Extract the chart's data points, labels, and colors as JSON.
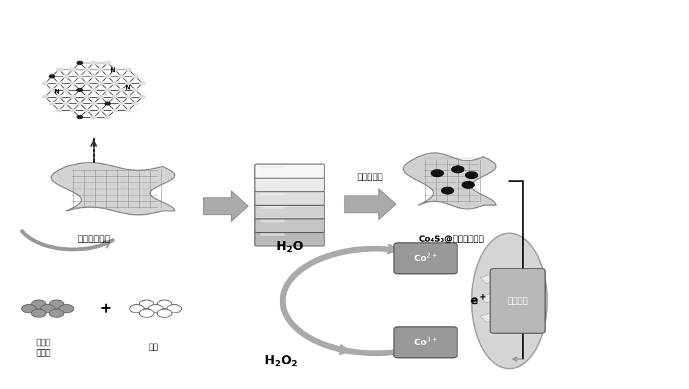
{
  "bg_color": "#ffffff",
  "fig_width": 10.0,
  "fig_height": 5.65,
  "graphene_label": "氮掺杂石墨烯",
  "cobalt_acetate_label": "四水合\n醋酸钔",
  "thiourea_label": "硫脲",
  "reaction_label": "溶剂热反应",
  "product_label": "Co₄S₃@氮掺杂石墨烯",
  "h2o_label": "H₂O",
  "h2o2_label": "H₂O₂",
  "glass_carbon_label": "玻碳电极",
  "arrow_color": "#888888",
  "gray_color": "#999999",
  "dark_gray": "#666666",
  "light_gray": "#bbbbbb",
  "box_color": "#888888"
}
